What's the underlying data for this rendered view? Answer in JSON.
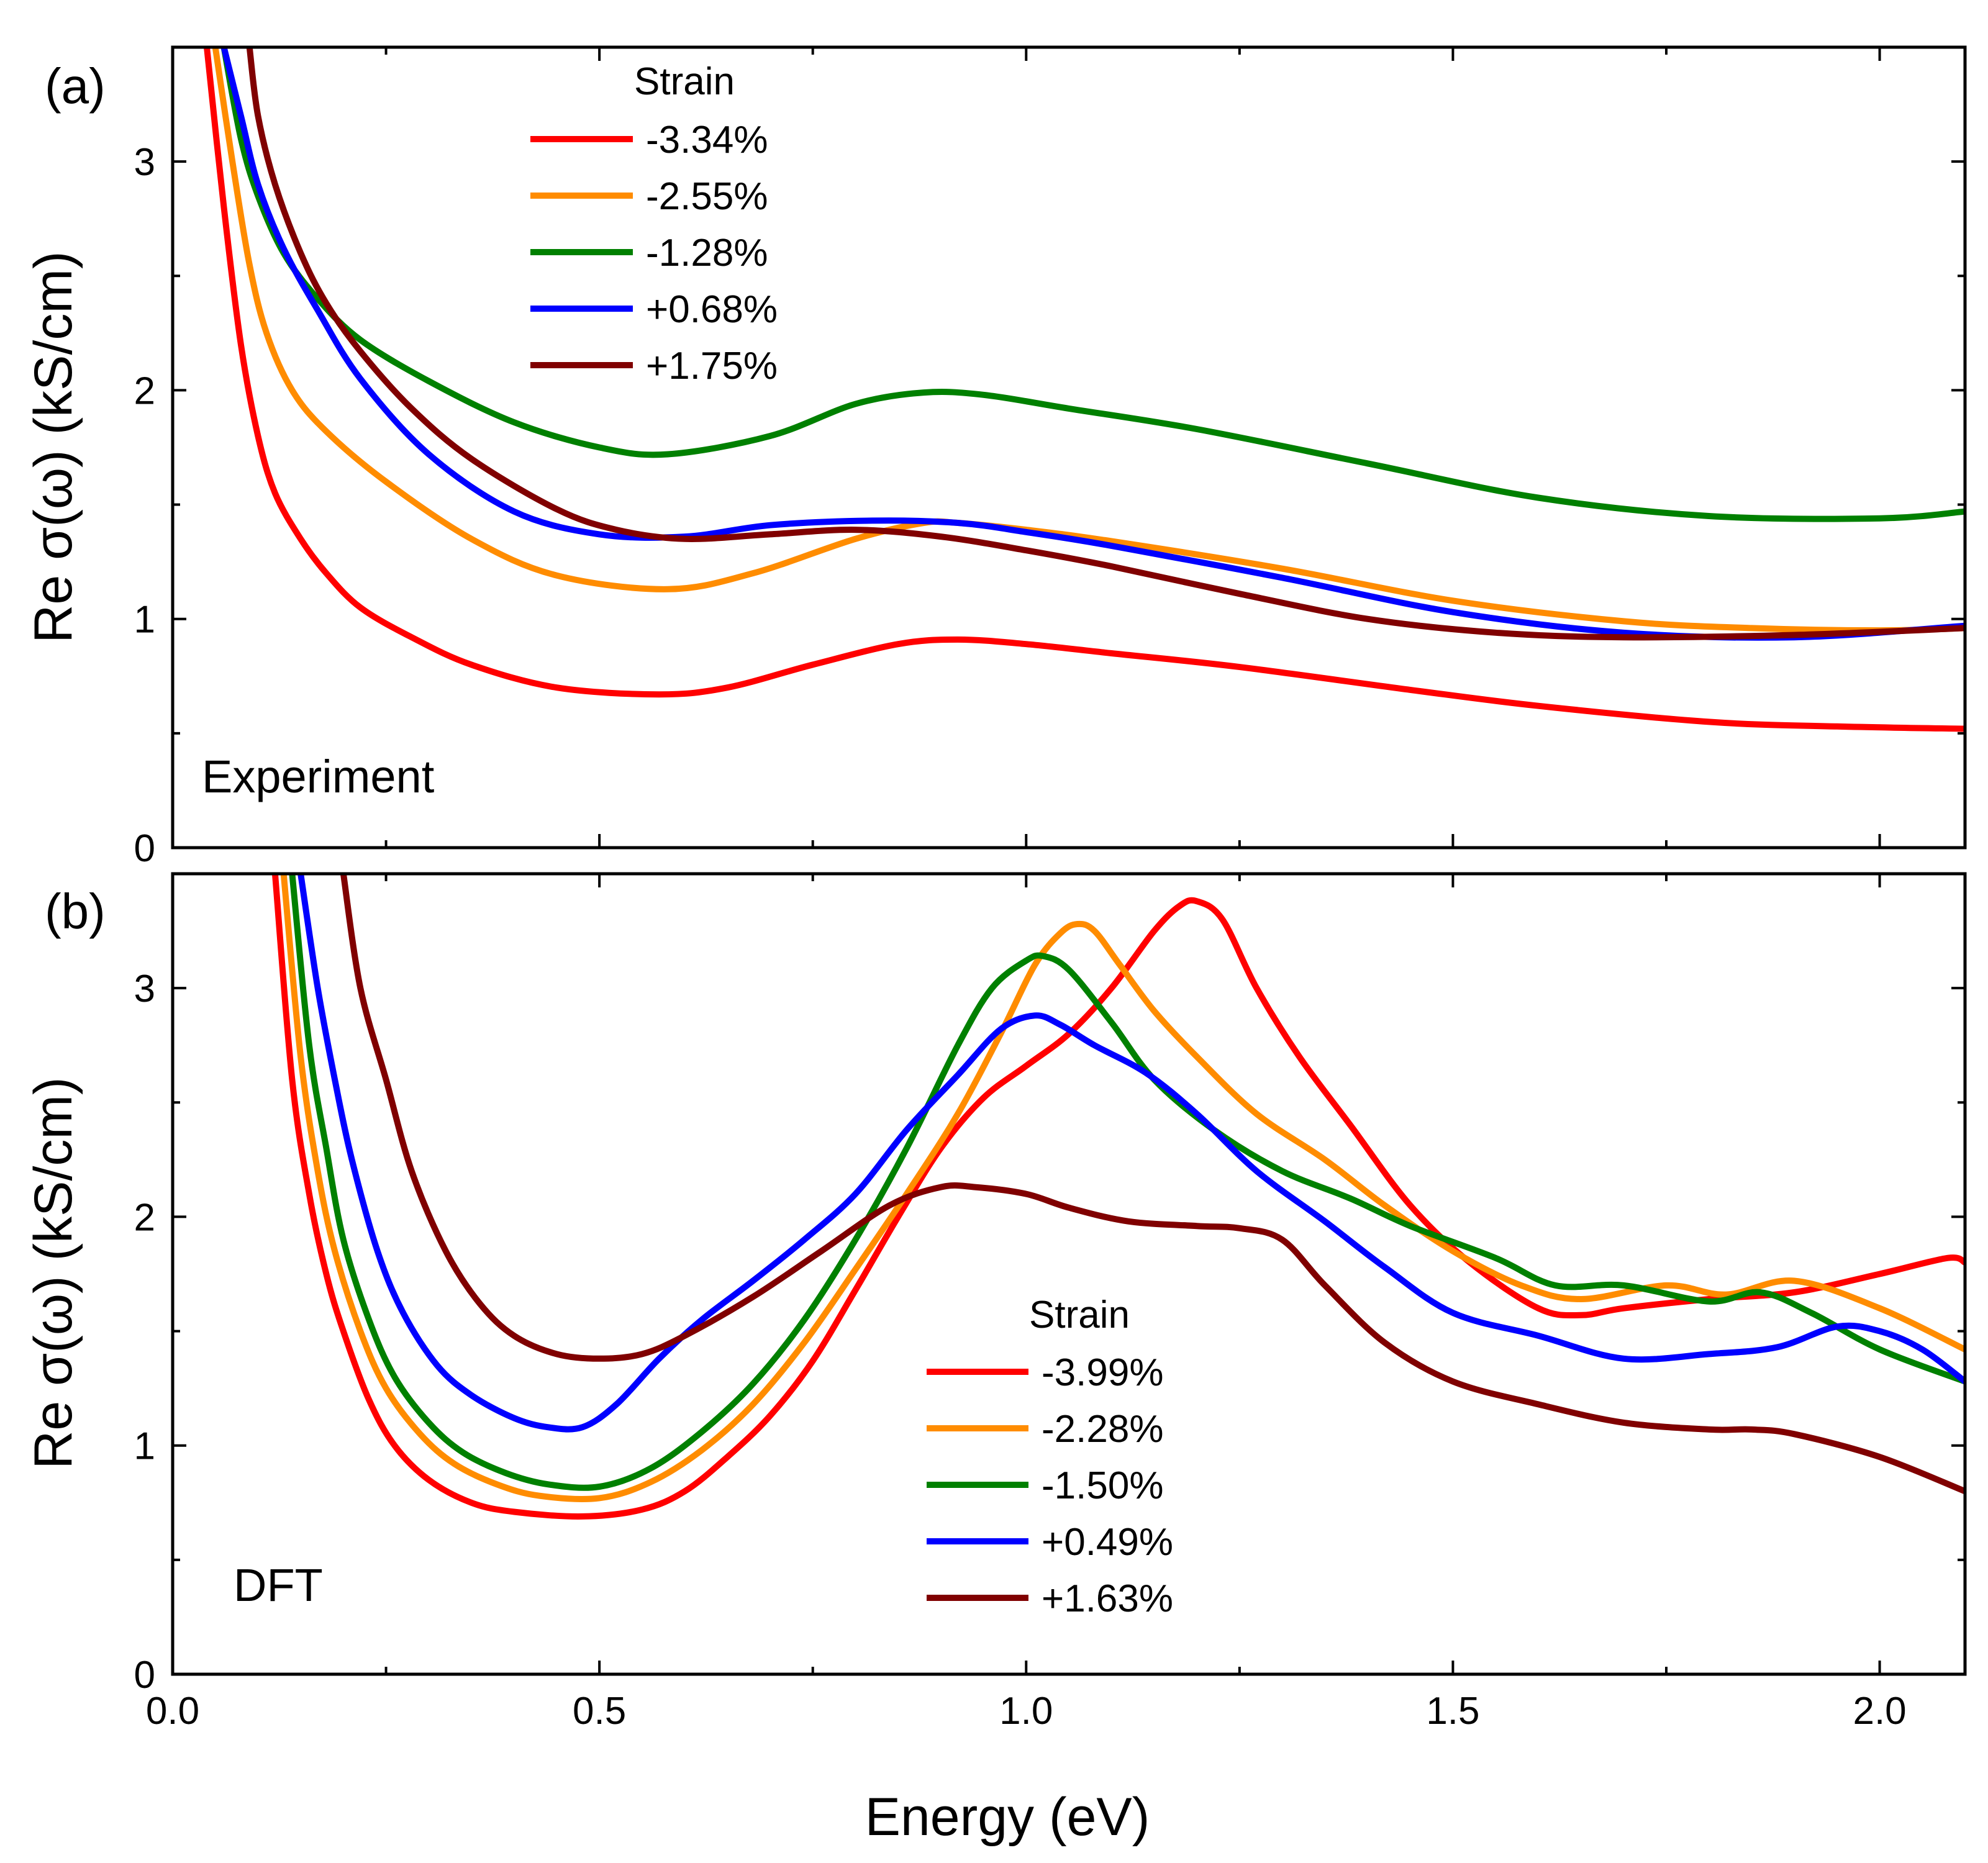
{
  "chart_data": [
    {
      "panel_label": "(a)",
      "type": "line",
      "annotation": "Experiment",
      "xlabel": "Energy (eV)",
      "ylabel": "Re σ(ω) (kS/cm)",
      "xlim": [
        0.0,
        2.1
      ],
      "ylim": [
        0,
        3.5
      ],
      "yticks": [
        0,
        1,
        2,
        3
      ],
      "ytick_labels": [
        "0",
        "1",
        "2",
        "3"
      ],
      "legend": {
        "title": "Strain",
        "position": "top-center-left"
      },
      "series": [
        {
          "name": "-3.34%",
          "color": "#ff0000",
          "x": [
            0.04,
            0.06,
            0.08,
            0.1,
            0.12,
            0.15,
            0.18,
            0.22,
            0.28,
            0.35,
            0.45,
            0.57,
            0.65,
            0.75,
            0.85,
            0.92,
            1.0,
            1.1,
            1.25,
            1.45,
            1.6,
            1.8,
            1.95,
            2.1
          ],
          "y": [
            3.5,
            2.8,
            2.2,
            1.8,
            1.55,
            1.35,
            1.2,
            1.05,
            0.92,
            0.8,
            0.7,
            0.67,
            0.7,
            0.8,
            0.89,
            0.91,
            0.89,
            0.85,
            0.79,
            0.69,
            0.62,
            0.55,
            0.53,
            0.52
          ]
        },
        {
          "name": "-2.55%",
          "color": "#ff8c00",
          "x": [
            0.05,
            0.07,
            0.09,
            0.11,
            0.14,
            0.18,
            0.25,
            0.35,
            0.45,
            0.58,
            0.68,
            0.8,
            0.88,
            0.92,
            1.0,
            1.1,
            1.3,
            1.5,
            1.7,
            1.85,
            2.0,
            2.1
          ],
          "y": [
            3.5,
            3.0,
            2.55,
            2.25,
            2.0,
            1.82,
            1.6,
            1.35,
            1.19,
            1.13,
            1.2,
            1.35,
            1.42,
            1.42,
            1.39,
            1.34,
            1.22,
            1.08,
            0.99,
            0.96,
            0.95,
            0.96
          ]
        },
        {
          "name": "-1.28%",
          "color": "#008000",
          "x": [
            0.06,
            0.08,
            0.1,
            0.13,
            0.17,
            0.22,
            0.3,
            0.4,
            0.5,
            0.58,
            0.7,
            0.8,
            0.88,
            0.95,
            1.05,
            1.2,
            1.4,
            1.6,
            1.8,
            2.0,
            2.1
          ],
          "y": [
            3.5,
            3.1,
            2.85,
            2.6,
            2.4,
            2.22,
            2.04,
            1.86,
            1.75,
            1.72,
            1.8,
            1.94,
            1.99,
            1.98,
            1.92,
            1.83,
            1.68,
            1.53,
            1.45,
            1.44,
            1.47
          ]
        },
        {
          "name": "+0.68%",
          "color": "#0000ff",
          "x": [
            0.06,
            0.08,
            0.1,
            0.13,
            0.17,
            0.22,
            0.3,
            0.4,
            0.5,
            0.6,
            0.7,
            0.82,
            0.92,
            1.0,
            1.1,
            1.3,
            1.5,
            1.7,
            1.9,
            2.1
          ],
          "y": [
            3.5,
            3.2,
            2.9,
            2.62,
            2.35,
            2.05,
            1.72,
            1.47,
            1.37,
            1.36,
            1.41,
            1.43,
            1.42,
            1.38,
            1.32,
            1.18,
            1.03,
            0.94,
            0.92,
            0.97
          ]
        },
        {
          "name": "+1.75%",
          "color": "#800000",
          "x": [
            0.09,
            0.1,
            0.12,
            0.15,
            0.18,
            0.22,
            0.28,
            0.35,
            0.45,
            0.52,
            0.6,
            0.7,
            0.8,
            0.9,
            1.0,
            1.1,
            1.25,
            1.4,
            1.55,
            1.7,
            1.9,
            2.1
          ],
          "y": [
            3.5,
            3.2,
            2.9,
            2.6,
            2.38,
            2.17,
            1.92,
            1.7,
            1.48,
            1.39,
            1.35,
            1.37,
            1.39,
            1.36,
            1.3,
            1.23,
            1.11,
            1.0,
            0.94,
            0.92,
            0.93,
            0.96
          ]
        }
      ]
    },
    {
      "panel_label": "(b)",
      "type": "line",
      "annotation": "DFT",
      "xlabel": "Energy (eV)",
      "ylabel": "Re σ(ω) (kS/cm)",
      "xlim": [
        0.0,
        2.1
      ],
      "ylim": [
        0,
        3.5
      ],
      "xticks": [
        0.0,
        0.5,
        1.0,
        1.5,
        2.0
      ],
      "xtick_labels": [
        "0.0",
        "0.5",
        "1.0",
        "1.5",
        "2.0"
      ],
      "yticks": [
        0,
        1,
        2,
        3
      ],
      "ytick_labels": [
        "0",
        "1",
        "2",
        "3"
      ],
      "legend": {
        "title": "Strain",
        "position": "bottom-center"
      },
      "series": [
        {
          "name": "-3.99%",
          "color": "#ff0000",
          "x": [
            0.12,
            0.14,
            0.16,
            0.18,
            0.2,
            0.23,
            0.26,
            0.3,
            0.35,
            0.4,
            0.48,
            0.55,
            0.6,
            0.65,
            0.7,
            0.75,
            0.8,
            0.85,
            0.9,
            0.95,
            1.0,
            1.05,
            1.1,
            1.15,
            1.18,
            1.2,
            1.23,
            1.27,
            1.32,
            1.38,
            1.45,
            1.52,
            1.6,
            1.65,
            1.7,
            1.8,
            1.9,
            2.0,
            2.08,
            2.1
          ],
          "y": [
            3.5,
            2.6,
            2.1,
            1.75,
            1.5,
            1.2,
            1.0,
            0.85,
            0.75,
            0.71,
            0.69,
            0.72,
            0.8,
            0.95,
            1.13,
            1.37,
            1.68,
            2.0,
            2.3,
            2.52,
            2.66,
            2.8,
            3.0,
            3.25,
            3.36,
            3.38,
            3.3,
            3.0,
            2.7,
            2.4,
            2.05,
            1.8,
            1.6,
            1.57,
            1.6,
            1.64,
            1.67,
            1.75,
            1.82,
            1.8
          ]
        },
        {
          "name": "-2.28%",
          "color": "#ff8c00",
          "x": [
            0.13,
            0.15,
            0.17,
            0.19,
            0.22,
            0.25,
            0.29,
            0.33,
            0.38,
            0.43,
            0.5,
            0.56,
            0.62,
            0.68,
            0.74,
            0.8,
            0.86,
            0.92,
            0.97,
            1.01,
            1.04,
            1.06,
            1.08,
            1.11,
            1.15,
            1.2,
            1.27,
            1.35,
            1.42,
            1.5,
            1.58,
            1.65,
            1.75,
            1.82,
            1.9,
            2.0,
            2.1
          ],
          "y": [
            3.5,
            2.7,
            2.2,
            1.85,
            1.5,
            1.25,
            1.05,
            0.92,
            0.83,
            0.78,
            0.77,
            0.84,
            0.98,
            1.18,
            1.45,
            1.77,
            2.1,
            2.45,
            2.8,
            3.1,
            3.24,
            3.28,
            3.25,
            3.1,
            2.9,
            2.7,
            2.45,
            2.25,
            2.05,
            1.85,
            1.7,
            1.64,
            1.7,
            1.66,
            1.72,
            1.6,
            1.42
          ]
        },
        {
          "name": "-1.50%",
          "color": "#008000",
          "x": [
            0.14,
            0.16,
            0.18,
            0.2,
            0.23,
            0.26,
            0.3,
            0.34,
            0.39,
            0.44,
            0.5,
            0.56,
            0.62,
            0.68,
            0.74,
            0.8,
            0.86,
            0.92,
            0.96,
            1.0,
            1.02,
            1.05,
            1.1,
            1.15,
            1.22,
            1.3,
            1.38,
            1.45,
            1.55,
            1.62,
            1.7,
            1.8,
            1.86,
            1.92,
            2.0,
            2.1
          ],
          "y": [
            3.5,
            2.75,
            2.3,
            1.9,
            1.55,
            1.3,
            1.1,
            0.97,
            0.88,
            0.83,
            0.82,
            0.9,
            1.06,
            1.27,
            1.55,
            1.9,
            2.3,
            2.75,
            3.0,
            3.12,
            3.14,
            3.08,
            2.85,
            2.6,
            2.38,
            2.2,
            2.08,
            1.96,
            1.82,
            1.7,
            1.7,
            1.63,
            1.67,
            1.58,
            1.42,
            1.28
          ]
        },
        {
          "name": "+0.49%",
          "color": "#0000ff",
          "x": [
            0.15,
            0.17,
            0.19,
            0.21,
            0.24,
            0.27,
            0.31,
            0.35,
            0.4,
            0.44,
            0.48,
            0.52,
            0.57,
            0.62,
            0.68,
            0.74,
            0.8,
            0.86,
            0.92,
            0.97,
            1.01,
            1.04,
            1.08,
            1.14,
            1.2,
            1.27,
            1.35,
            1.42,
            1.5,
            1.6,
            1.7,
            1.8,
            1.88,
            1.95,
            2.0,
            2.05,
            2.1
          ],
          "y": [
            3.5,
            3.0,
            2.6,
            2.25,
            1.85,
            1.58,
            1.35,
            1.22,
            1.12,
            1.08,
            1.08,
            1.18,
            1.38,
            1.55,
            1.72,
            1.9,
            2.1,
            2.38,
            2.62,
            2.82,
            2.88,
            2.84,
            2.75,
            2.63,
            2.45,
            2.2,
            1.98,
            1.78,
            1.58,
            1.48,
            1.38,
            1.4,
            1.43,
            1.52,
            1.5,
            1.42,
            1.28
          ]
        },
        {
          "name": "+1.63%",
          "color": "#800000",
          "x": [
            0.2,
            0.22,
            0.25,
            0.28,
            0.32,
            0.36,
            0.4,
            0.45,
            0.5,
            0.55,
            0.6,
            0.68,
            0.76,
            0.84,
            0.9,
            0.94,
            1.0,
            1.05,
            1.12,
            1.2,
            1.25,
            1.3,
            1.35,
            1.42,
            1.5,
            1.6,
            1.7,
            1.8,
            1.85,
            1.9,
            2.0,
            2.1
          ],
          "y": [
            3.5,
            3.0,
            2.6,
            2.2,
            1.85,
            1.62,
            1.48,
            1.4,
            1.38,
            1.4,
            1.48,
            1.65,
            1.85,
            2.05,
            2.13,
            2.13,
            2.1,
            2.04,
            1.98,
            1.96,
            1.95,
            1.9,
            1.7,
            1.45,
            1.28,
            1.18,
            1.1,
            1.07,
            1.07,
            1.05,
            0.95,
            0.8
          ]
        }
      ]
    }
  ]
}
